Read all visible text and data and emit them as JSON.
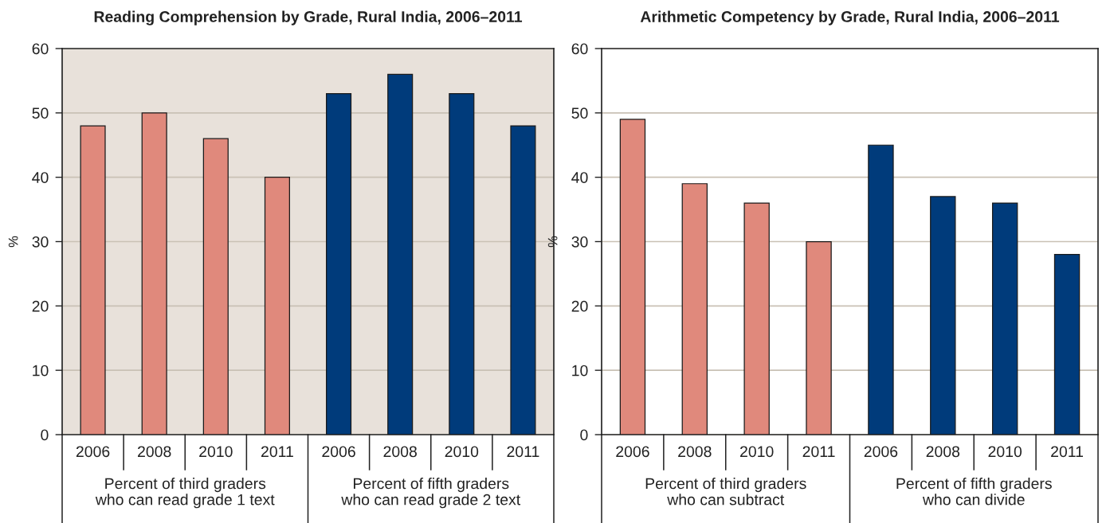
{
  "chart_data": [
    {
      "type": "bar",
      "title": "Reading Comprehension by Grade, Rural India, 2006–2011",
      "ylabel": "%",
      "categories": [
        "2006",
        "2008",
        "2010",
        "2011",
        "2006",
        "2008",
        "2010",
        "2011"
      ],
      "values": [
        48,
        50,
        46,
        40,
        53,
        56,
        53,
        48
      ],
      "colors": [
        "#e0897c",
        "#e0897c",
        "#e0897c",
        "#e0897c",
        "#003b7b",
        "#003b7b",
        "#003b7b",
        "#003b7b"
      ],
      "ylim": [
        0,
        60
      ],
      "yticks": [
        0,
        10,
        20,
        30,
        40,
        50,
        60
      ],
      "grid": "y",
      "annotations": [
        "Percent of third graders\nwho can read grade 1 text",
        "Percent of fifth graders\nwho can read grade 2 text"
      ]
    },
    {
      "type": "bar",
      "title": "Arithmetic Competency by Grade, Rural India, 2006–2011",
      "ylabel": "%",
      "categories": [
        "2006",
        "2008",
        "2010",
        "2011",
        "2006",
        "2008",
        "2010",
        "2011"
      ],
      "values": [
        49,
        39,
        36,
        30,
        45,
        37,
        36,
        28
      ],
      "colors": [
        "#e0897c",
        "#e0897c",
        "#e0897c",
        "#e0897c",
        "#003b7b",
        "#003b7b",
        "#003b7b",
        "#003b7b"
      ],
      "ylim": [
        0,
        60
      ],
      "yticks": [
        0,
        10,
        20,
        30,
        40,
        50,
        60
      ],
      "grid": "y",
      "annotations": [
        "Percent of third graders\nwho can subtract",
        "Percent of fifth graders\nwho can divide"
      ]
    }
  ]
}
